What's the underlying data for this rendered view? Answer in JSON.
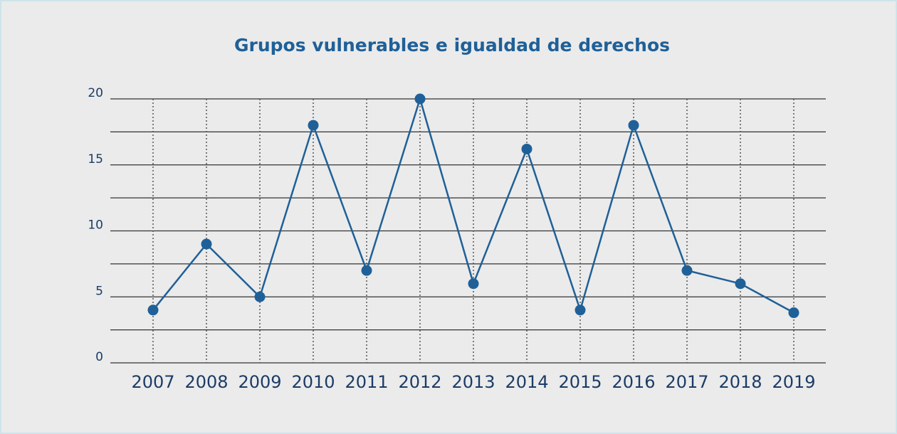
{
  "chart_data": {
    "type": "line",
    "title": "Grupos vulnerables e igualdad de derechos",
    "categories": [
      "2007",
      "2008",
      "2009",
      "2010",
      "2011",
      "2012",
      "2013",
      "2014",
      "2015",
      "2016",
      "2017",
      "2018",
      "2019"
    ],
    "series": [
      {
        "name": "Grupos vulnerables",
        "color": "#1f6098",
        "values": [
          4,
          9,
          5,
          18,
          7,
          20,
          6,
          16.2,
          4,
          18,
          7,
          6,
          3.8
        ]
      }
    ],
    "ylim": [
      0,
      20
    ],
    "yticks": [
      0,
      5,
      10,
      15,
      20
    ],
    "minor_yticks": [
      2.5,
      7.5,
      12.5,
      17.5
    ],
    "grid": true
  }
}
